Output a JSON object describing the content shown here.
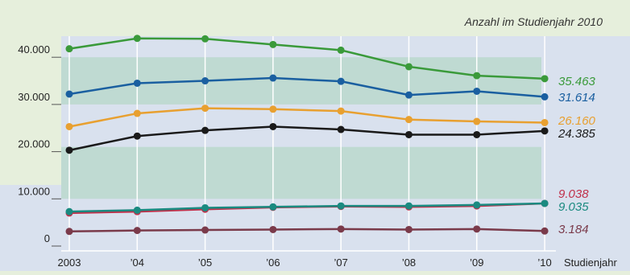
{
  "chart_data": {
    "type": "line",
    "subtitle": "Anzahl im Studienjahr 2010",
    "xlabel": "Studienjahr",
    "categories": [
      "2003",
      "’04",
      "’05",
      "’06",
      "’07",
      "’08",
      "’09",
      "’10"
    ],
    "ylim": [
      0,
      48000
    ],
    "yticks": [
      {
        "value": 0,
        "label": "0"
      },
      {
        "value": 10000,
        "label": "10.000"
      },
      {
        "value": 20000,
        "label": "20.000"
      },
      {
        "value": 30000,
        "label": "30.000"
      },
      {
        "value": 40000,
        "label": "40.000"
      }
    ],
    "bands": [
      [
        10000,
        21000
      ],
      [
        30000,
        40000
      ]
    ],
    "grid": "vertical",
    "series": [
      {
        "color": "#3a9a3a",
        "values": [
          41800,
          44000,
          43900,
          42700,
          41500,
          38000,
          36100,
          35463
        ],
        "end_label": "35.463"
      },
      {
        "color": "#1a5fa0",
        "values": [
          32200,
          34500,
          35000,
          35600,
          34900,
          32000,
          32800,
          31614
        ],
        "end_label": "31.614"
      },
      {
        "color": "#e8a030",
        "values": [
          25300,
          28100,
          29200,
          29000,
          28600,
          26800,
          26400,
          26160
        ],
        "end_label": "26.160"
      },
      {
        "color": "#1a1a1a",
        "values": [
          20300,
          23300,
          24500,
          25300,
          24700,
          23600,
          23600,
          24385
        ],
        "end_label": "24.385"
      },
      {
        "color": "#c0304a",
        "values": [
          7000,
          7300,
          7800,
          8200,
          8400,
          8300,
          8500,
          9038
        ],
        "end_label": "9.038"
      },
      {
        "color": "#1a8a80",
        "values": [
          7300,
          7600,
          8100,
          8300,
          8500,
          8500,
          8700,
          9035
        ],
        "end_label": "9.035"
      },
      {
        "color": "#7a3a4a",
        "values": [
          3100,
          3300,
          3400,
          3500,
          3600,
          3500,
          3600,
          3184
        ],
        "end_label": "3.184"
      }
    ]
  }
}
